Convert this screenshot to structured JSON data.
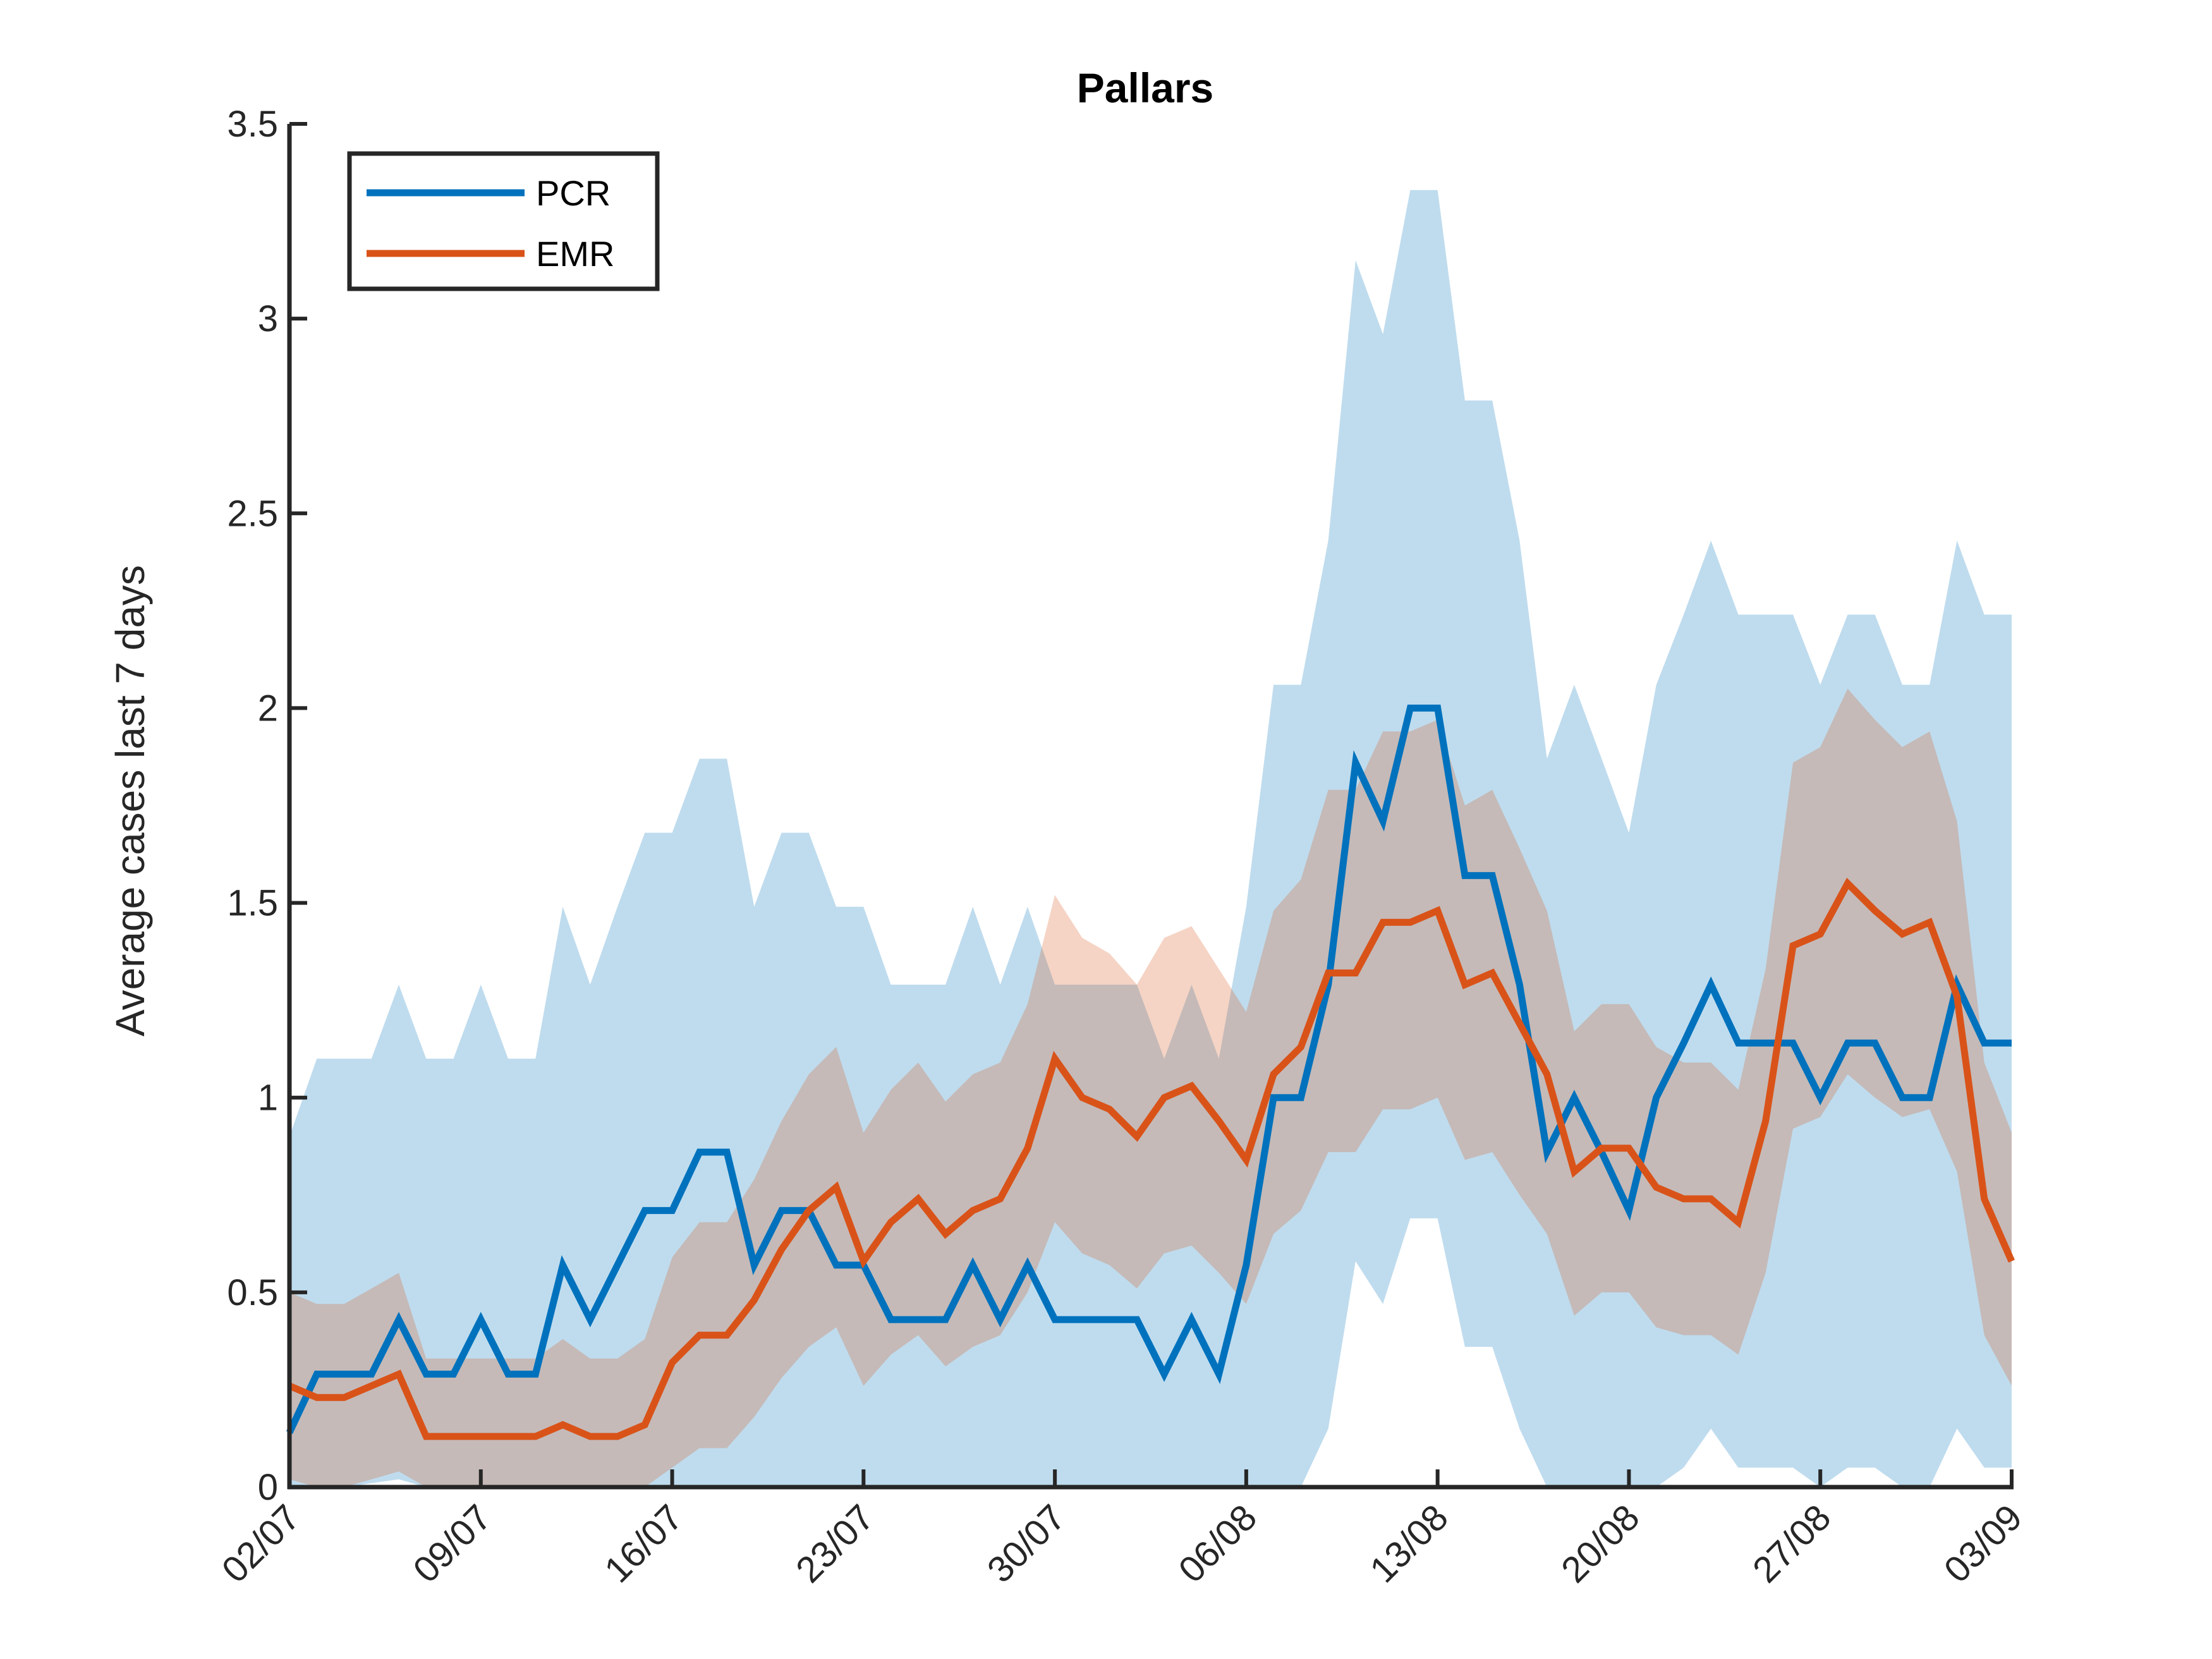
{
  "chart_data": {
    "type": "line",
    "title": "Pallars",
    "xlabel": "",
    "ylabel": "Average cases last 7 days",
    "ylim": [
      0,
      3.5
    ],
    "yticks": [
      "0",
      "0.5",
      "1",
      "1.5",
      "2",
      "2.5",
      "3",
      "3.5"
    ],
    "x_start": "02/07",
    "x_end": "03/09",
    "xticks": [
      "02/07",
      "09/07",
      "16/07",
      "23/07",
      "30/07",
      "06/08",
      "13/08",
      "20/08",
      "27/08",
      "03/09"
    ],
    "legend": {
      "location": "top-left",
      "entries": [
        "PCR",
        "EMR"
      ]
    },
    "grid": false,
    "series": [
      {
        "name": "PCR",
        "color": "#0072BD",
        "band_color": "#BDDCEE",
        "values": [
          0.14,
          0.29,
          0.29,
          0.29,
          0.43,
          0.29,
          0.29,
          0.43,
          0.29,
          0.29,
          0.57,
          0.43,
          0.57,
          0.71,
          0.71,
          0.86,
          0.86,
          0.57,
          0.71,
          0.71,
          0.57,
          0.57,
          0.43,
          0.43,
          0.43,
          0.57,
          0.43,
          0.57,
          0.43,
          0.43,
          0.43,
          0.43,
          0.29,
          0.43,
          0.29,
          0.57,
          1.0,
          1.0,
          1.29,
          1.86,
          1.71,
          2.0,
          2.0,
          1.57,
          1.57,
          1.29,
          0.86,
          1.0,
          0.86,
          0.71,
          1.0,
          1.14,
          1.29,
          1.14,
          1.14,
          1.14,
          1.0,
          1.14,
          1.14,
          1.0,
          1.0,
          1.29,
          1.14,
          1.14
        ],
        "upper": [
          0.9,
          1.1,
          1.1,
          1.1,
          1.29,
          1.1,
          1.1,
          1.29,
          1.1,
          1.1,
          1.49,
          1.29,
          1.49,
          1.68,
          1.68,
          1.87,
          1.87,
          1.49,
          1.68,
          1.68,
          1.49,
          1.49,
          1.29,
          1.29,
          1.29,
          1.49,
          1.29,
          1.49,
          1.29,
          1.29,
          1.29,
          1.29,
          1.1,
          1.29,
          1.1,
          1.49,
          2.06,
          2.06,
          2.43,
          3.15,
          2.96,
          3.33,
          3.33,
          2.79,
          2.79,
          2.43,
          1.87,
          2.06,
          1.87,
          1.68,
          2.06,
          2.24,
          2.43,
          2.24,
          2.24,
          2.24,
          2.06,
          2.24,
          2.24,
          2.06,
          2.06,
          2.43,
          2.24,
          2.24
        ],
        "lower": [
          0.0,
          0.0,
          0.0,
          0.01,
          0.02,
          0.0,
          0.0,
          0.0,
          0.0,
          0.0,
          0.0,
          0.0,
          0.0,
          0.0,
          0.0,
          0.0,
          0.0,
          0.0,
          0.0,
          0.0,
          0.0,
          0.0,
          0.0,
          0.0,
          0.0,
          0.0,
          0.0,
          0.0,
          0.0,
          0.0,
          0.0,
          0.0,
          0.0,
          0.0,
          0.0,
          0.0,
          0.0,
          0.0,
          0.15,
          0.58,
          0.47,
          0.69,
          0.69,
          0.36,
          0.36,
          0.15,
          0.0,
          0.0,
          0.0,
          0.0,
          0.0,
          0.05,
          0.15,
          0.05,
          0.05,
          0.05,
          0.0,
          0.05,
          0.05,
          0.0,
          0.0,
          0.15,
          0.05,
          0.05
        ]
      },
      {
        "name": "EMR",
        "color": "#D95319",
        "band_color": "#F6D2C0",
        "values": [
          0.26,
          0.23,
          0.23,
          0.26,
          0.29,
          0.13,
          0.13,
          0.13,
          0.13,
          0.13,
          0.16,
          0.13,
          0.13,
          0.16,
          0.32,
          0.39,
          0.39,
          0.48,
          0.61,
          0.71,
          0.77,
          0.58,
          0.68,
          0.74,
          0.65,
          0.71,
          0.74,
          0.87,
          1.1,
          1.0,
          0.97,
          0.9,
          1.0,
          1.03,
          0.94,
          0.84,
          1.06,
          1.13,
          1.32,
          1.32,
          1.45,
          1.45,
          1.48,
          1.29,
          1.32,
          1.19,
          1.06,
          0.81,
          0.87,
          0.87,
          0.77,
          0.74,
          0.74,
          0.68,
          0.94,
          1.39,
          1.42,
          1.55,
          1.48,
          1.42,
          1.45,
          1.26,
          0.74,
          0.58
        ],
        "upper": [
          0.5,
          0.47,
          0.47,
          0.51,
          0.55,
          0.33,
          0.33,
          0.33,
          0.33,
          0.33,
          0.38,
          0.33,
          0.33,
          0.38,
          0.59,
          0.68,
          0.68,
          0.79,
          0.94,
          1.06,
          1.13,
          0.91,
          1.02,
          1.09,
          0.99,
          1.06,
          1.09,
          1.24,
          1.52,
          1.41,
          1.37,
          1.29,
          1.41,
          1.44,
          1.33,
          1.22,
          1.48,
          1.56,
          1.79,
          1.79,
          1.94,
          1.94,
          1.97,
          1.75,
          1.79,
          1.64,
          1.48,
          1.17,
          1.24,
          1.24,
          1.13,
          1.09,
          1.09,
          1.02,
          1.33,
          1.86,
          1.9,
          2.05,
          1.97,
          1.9,
          1.94,
          1.71,
          1.09,
          0.91
        ],
        "lower": [
          0.02,
          0.0,
          0.0,
          0.02,
          0.04,
          0.0,
          0.0,
          0.0,
          0.0,
          0.0,
          0.0,
          0.0,
          0.0,
          0.0,
          0.05,
          0.1,
          0.1,
          0.18,
          0.28,
          0.36,
          0.41,
          0.26,
          0.34,
          0.39,
          0.31,
          0.36,
          0.39,
          0.5,
          0.68,
          0.6,
          0.57,
          0.51,
          0.6,
          0.62,
          0.55,
          0.47,
          0.65,
          0.71,
          0.86,
          0.86,
          0.97,
          0.97,
          1.0,
          0.84,
          0.86,
          0.75,
          0.65,
          0.44,
          0.5,
          0.5,
          0.41,
          0.39,
          0.39,
          0.34,
          0.55,
          0.92,
          0.95,
          1.06,
          1.0,
          0.95,
          0.97,
          0.81,
          0.39,
          0.26
        ]
      }
    ]
  }
}
